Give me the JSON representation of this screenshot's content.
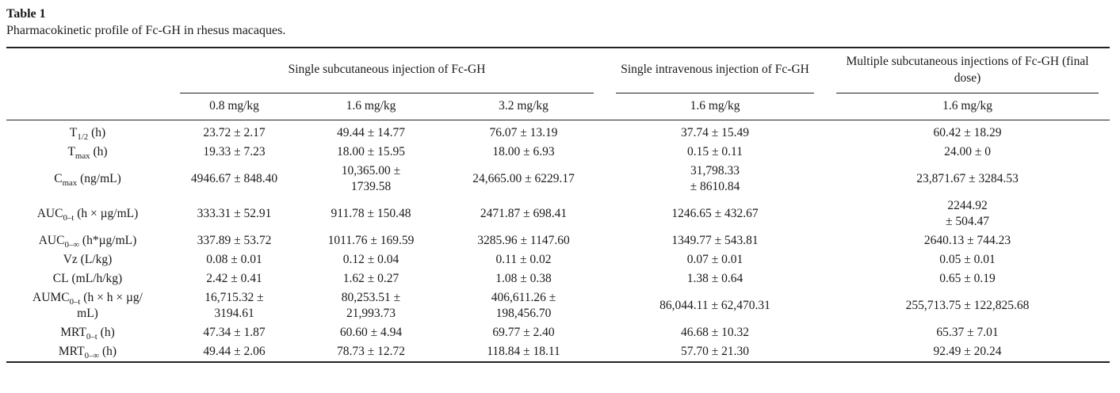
{
  "page": {
    "title": "Table 1",
    "caption": "Pharmacokinetic profile of Fc-GH in rhesus macaques."
  },
  "table": {
    "column_groups": [
      {
        "label": "Single subcutaneous injection of Fc-GH",
        "span": 3
      },
      {
        "label": "Single intravenous injection of Fc-GH",
        "span": 1
      },
      {
        "label": "Multiple subcutaneous injections of Fc-GH (final dose)",
        "span": 1
      }
    ],
    "dose_headers": [
      "0.8 mg/kg",
      "1.6 mg/kg",
      "3.2 mg/kg",
      "1.6 mg/kg",
      "1.6 mg/kg"
    ],
    "rows": [
      {
        "label": {
          "pre": "T",
          "sub": "1/2",
          "post": " (h)"
        },
        "values": [
          "23.72 ± 2.17",
          "49.44 ± 14.77",
          "76.07 ± 13.19",
          "37.74 ± 15.49",
          "60.42 ± 18.29"
        ]
      },
      {
        "label": {
          "pre": "T",
          "sub": "max",
          "post": " (h)"
        },
        "values": [
          "19.33 ± 7.23",
          "18.00 ± 15.95",
          "18.00 ± 6.93",
          "0.15 ± 0.11",
          "24.00 ± 0"
        ]
      },
      {
        "label": {
          "pre": "C",
          "sub": "max",
          "post": " (ng/mL)"
        },
        "values": [
          "4946.67 ± 848.40",
          "10,365.00 ±\n1739.58",
          "24,665.00 ± 6229.17",
          "31,798.33\n± 8610.84",
          "23,871.67 ± 3284.53"
        ]
      },
      {
        "label": {
          "pre": "AUC",
          "sub": "0–t",
          "post": " (h × µg/mL)"
        },
        "values": [
          "333.31 ± 52.91",
          "911.78 ± 150.48",
          "2471.87 ± 698.41",
          "1246.65 ± 432.67",
          "2244.92\n± 504.47"
        ]
      },
      {
        "label": {
          "pre": "AUC",
          "sub": "0–∞",
          "post": " (h*µg/mL)"
        },
        "values": [
          "337.89 ± 53.72",
          "1011.76 ± 169.59",
          "3285.96 ± 1147.60",
          "1349.77 ± 543.81",
          "2640.13 ± 744.23"
        ]
      },
      {
        "label": {
          "pre": "Vz",
          "sub": "",
          "post": " (L/kg)"
        },
        "values": [
          "0.08 ± 0.01",
          "0.12 ± 0.04",
          "0.11 ± 0.02",
          "0.07 ± 0.01",
          "0.05 ± 0.01"
        ]
      },
      {
        "label": {
          "pre": "CL",
          "sub": "",
          "post": " (mL/h/kg)"
        },
        "values": [
          "2.42 ± 0.41",
          "1.62 ± 0.27",
          "1.08 ± 0.38",
          "1.38 ± 0.64",
          "0.65 ± 0.19"
        ]
      },
      {
        "label": {
          "pre": "AUMC",
          "sub": "0–t",
          "post": " (h × h × µg/\nmL)"
        },
        "values": [
          "16,715.32 ±\n3194.61",
          "80,253.51 ±\n21,993.73",
          "406,611.26 ±\n198,456.70",
          "86,044.11 ± 62,470.31",
          "255,713.75 ± 122,825.68"
        ]
      },
      {
        "label": {
          "pre": "MRT",
          "sub": "0–t",
          "post": " (h)"
        },
        "values": [
          "47.34 ± 1.87",
          "60.60 ± 4.94",
          "69.77 ± 2.40",
          "46.68 ± 10.32",
          "65.37 ± 7.01"
        ]
      },
      {
        "label": {
          "pre": "MRT",
          "sub": "0–∞",
          "post": " (h)"
        },
        "values": [
          "49.44 ± 2.06",
          "78.73 ± 12.72",
          "118.84 ± 18.11",
          "57.70 ± 21.30",
          "92.49 ± 20.24"
        ]
      }
    ],
    "colors": {
      "text": "#1a1a1a",
      "rule": "#222222",
      "background": "#ffffff"
    }
  }
}
